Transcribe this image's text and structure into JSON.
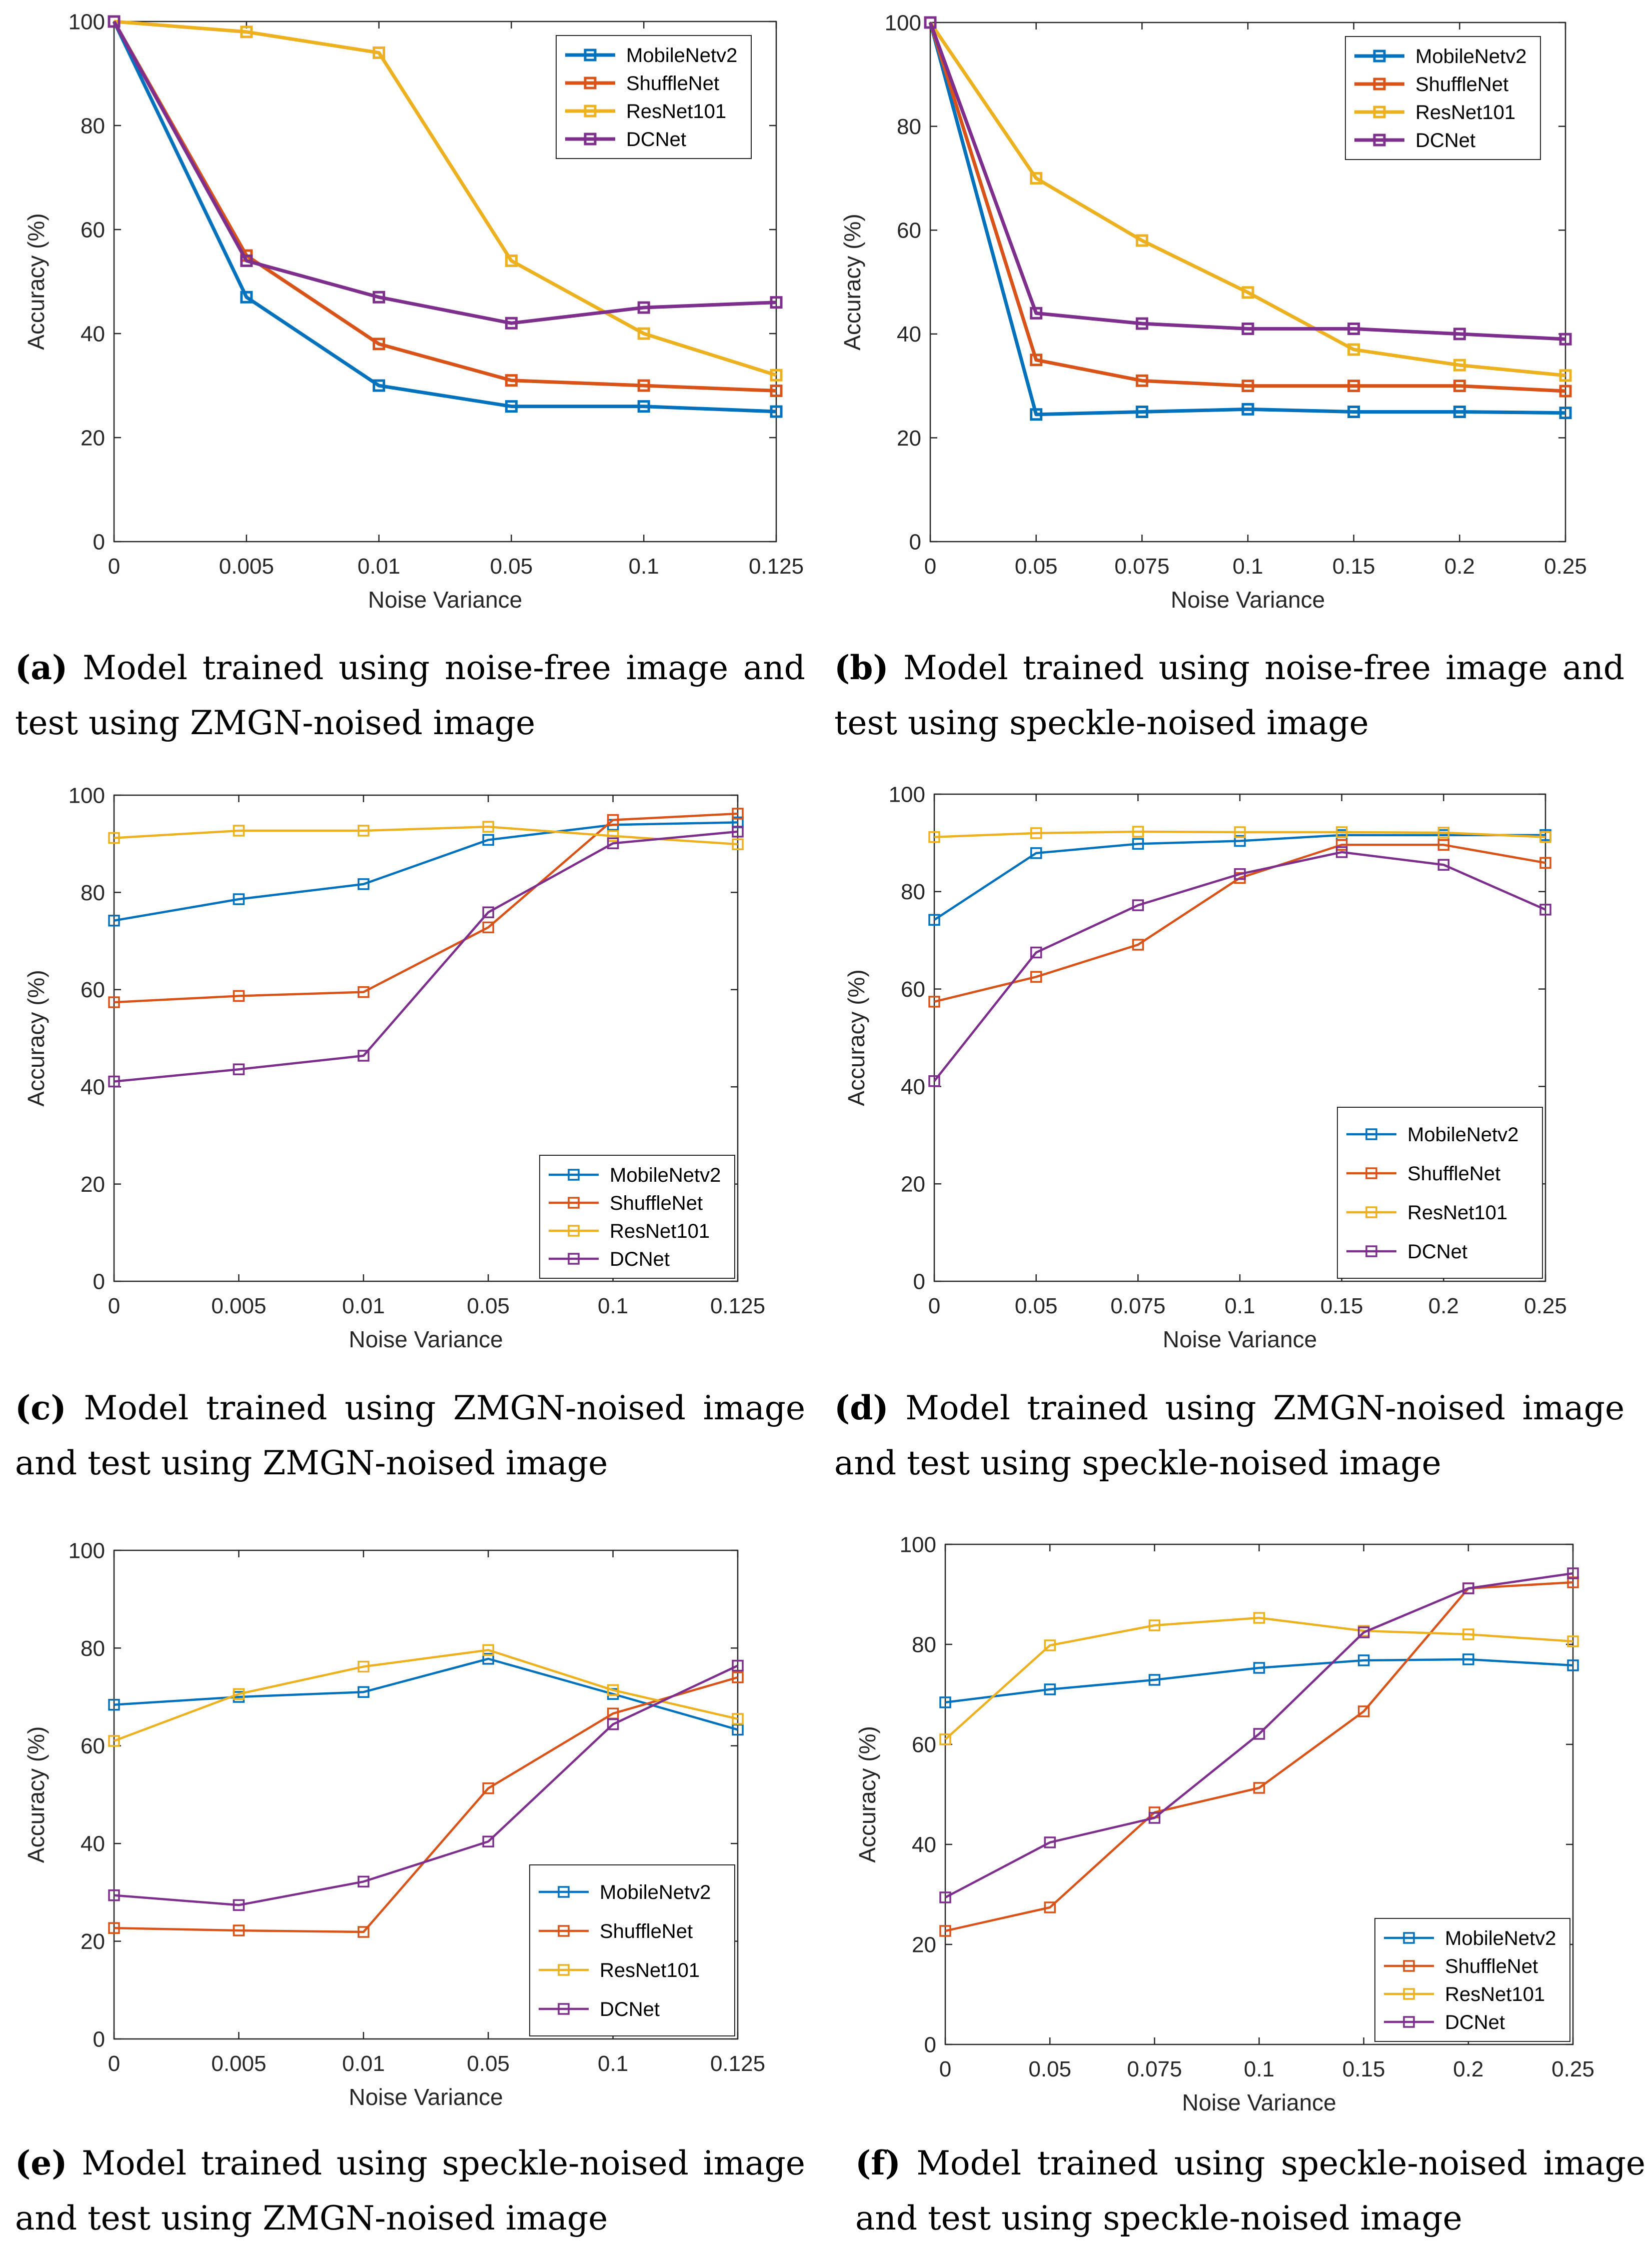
{
  "colors": {
    "MobileNetv2": "#0072BD",
    "ShuffleNet": "#D95319",
    "ResNet101": "#EDB120",
    "DCNet": "#7E2F8E"
  },
  "chart_data": [
    {
      "id": "a",
      "type": "line",
      "caption_label": "(a)",
      "caption_text": "Model trained using noise-free image and test using ZMGN-noised image",
      "categories": [
        "0",
        "0.005",
        "0.01",
        "0.05",
        "0.1",
        "0.125"
      ],
      "xlabel": "Noise Variance",
      "ylabel": "Accuracy (%)",
      "ylim": [
        0,
        100
      ],
      "yticks": [
        "0",
        "20",
        "40",
        "60",
        "80",
        "100"
      ],
      "legend_position": "top-right",
      "line_style": "thick",
      "series": [
        {
          "name": "MobileNetv2",
          "values": [
            100,
            47,
            30,
            26,
            26,
            25
          ]
        },
        {
          "name": "ShuffleNet",
          "values": [
            100,
            55,
            38,
            31,
            30,
            29
          ]
        },
        {
          "name": "ResNet101",
          "values": [
            100,
            98,
            94,
            54,
            40,
            32
          ]
        },
        {
          "name": "DCNet",
          "values": [
            100,
            54,
            47,
            42,
            45,
            46
          ]
        }
      ]
    },
    {
      "id": "b",
      "type": "line",
      "caption_label": "(b)",
      "caption_text": "Model trained using noise-free image and test using speckle-noised image",
      "categories": [
        "0",
        "0.05",
        "0.075",
        "0.1",
        "0.15",
        "0.2",
        "0.25"
      ],
      "xlabel": "Noise Variance",
      "ylabel": "Accuracy (%)",
      "ylim": [
        0,
        100
      ],
      "yticks": [
        "0",
        "20",
        "40",
        "60",
        "80",
        "100"
      ],
      "legend_position": "top-right",
      "line_style": "thick",
      "series": [
        {
          "name": "MobileNetv2",
          "values": [
            100,
            24.5,
            25,
            25.5,
            25,
            25,
            24.8
          ]
        },
        {
          "name": "ShuffleNet",
          "values": [
            100,
            35,
            31,
            30,
            30,
            30,
            29
          ]
        },
        {
          "name": "ResNet101",
          "values": [
            100,
            70,
            58,
            48,
            37,
            34,
            32
          ]
        },
        {
          "name": "DCNet",
          "values": [
            100,
            44,
            42,
            41,
            41,
            40,
            39
          ]
        }
      ]
    },
    {
      "id": "c",
      "type": "line",
      "caption_label": "(c)",
      "caption_text": "Model trained using ZMGN-noised image and test using ZMGN-noised image",
      "categories": [
        "0",
        "0.005",
        "0.01",
        "0.05",
        "0.1",
        "0.125"
      ],
      "xlabel": "Noise Variance",
      "ylabel": "Accuracy (%)",
      "ylim": [
        0,
        100
      ],
      "yticks": [
        "0",
        "20",
        "40",
        "60",
        "80",
        "100"
      ],
      "legend_position": "bottom-right",
      "line_style": "thin",
      "series": [
        {
          "name": "MobileNetv2",
          "values": [
            74.2,
            78.6,
            81.7,
            90.8,
            93.9,
            94.4
          ]
        },
        {
          "name": "ShuffleNet",
          "values": [
            57.4,
            58.7,
            59.5,
            72.8,
            94.9,
            96.2
          ]
        },
        {
          "name": "ResNet101",
          "values": [
            91.2,
            92.7,
            92.7,
            93.5,
            91.6,
            89.9
          ]
        },
        {
          "name": "DCNet",
          "values": [
            41.1,
            43.6,
            46.4,
            75.9,
            90.1,
            92.5
          ]
        }
      ]
    },
    {
      "id": "d",
      "type": "line",
      "caption_label": "(d)",
      "caption_text": "Model trained using ZMGN-noised image and test using speckle-noised image",
      "categories": [
        "0",
        "0.05",
        "0.075",
        "0.1",
        "0.15",
        "0.2",
        "0.25"
      ],
      "xlabel": "Noise Variance",
      "ylabel": "Accuracy (%)",
      "ylim": [
        0,
        100
      ],
      "yticks": [
        "0",
        "20",
        "40",
        "60",
        "80",
        "100"
      ],
      "legend_position": "bottom-right",
      "line_style": "thin",
      "series": [
        {
          "name": "MobileNetv2",
          "values": [
            74.2,
            87.9,
            89.8,
            90.4,
            91.6,
            91.6,
            91.6
          ]
        },
        {
          "name": "ShuffleNet",
          "values": [
            57.4,
            62.5,
            69.1,
            82.8,
            89.6,
            89.6,
            85.9
          ]
        },
        {
          "name": "ResNet101",
          "values": [
            91.2,
            92.0,
            92.3,
            92.2,
            92.2,
            92.1,
            91.2
          ]
        },
        {
          "name": "DCNet",
          "values": [
            41.1,
            67.5,
            77.2,
            83.6,
            88.1,
            85.5,
            76.3
          ]
        }
      ]
    },
    {
      "id": "e",
      "type": "line",
      "caption_label": "(e)",
      "caption_text": "Model trained using speckle-noised image and test using ZMGN-noised image",
      "categories": [
        "0",
        "0.005",
        "0.01",
        "0.05",
        "0.1",
        "0.125"
      ],
      "xlabel": "Noise Variance",
      "ylabel": "Accuracy (%)",
      "ylim": [
        0,
        100
      ],
      "yticks": [
        "0",
        "20",
        "40",
        "60",
        "80",
        "100"
      ],
      "legend_position": "bottom-right",
      "line_style": "thin",
      "series": [
        {
          "name": "MobileNetv2",
          "values": [
            68.4,
            70.0,
            71.0,
            77.8,
            70.6,
            63.3
          ]
        },
        {
          "name": "ShuffleNet",
          "values": [
            22.7,
            22.2,
            21.9,
            51.3,
            66.6,
            74.0
          ]
        },
        {
          "name": "ResNet101",
          "values": [
            61.0,
            70.6,
            76.2,
            79.6,
            71.4,
            65.5
          ]
        },
        {
          "name": "DCNet",
          "values": [
            29.4,
            27.4,
            32.2,
            40.4,
            64.4,
            76.4
          ]
        }
      ]
    },
    {
      "id": "f",
      "type": "line",
      "caption_label": "(f)",
      "caption_text": "Model trained using speckle-noised image and test using speckle-noised image",
      "categories": [
        "0",
        "0.05",
        "0.075",
        "0.1",
        "0.15",
        "0.2",
        "0.25"
      ],
      "xlabel": "Noise Variance",
      "ylabel": "Accuracy (%)",
      "ylim": [
        0,
        100
      ],
      "yticks": [
        "0",
        "20",
        "40",
        "60",
        "80",
        "100"
      ],
      "legend_position": "bottom-right",
      "line_style": "thin",
      "series": [
        {
          "name": "MobileNetv2",
          "values": [
            68.4,
            71.0,
            72.9,
            75.3,
            76.8,
            77.0,
            75.8
          ]
        },
        {
          "name": "ShuffleNet",
          "values": [
            22.7,
            27.4,
            46.4,
            51.3,
            66.6,
            91.2,
            92.4
          ]
        },
        {
          "name": "ResNet101",
          "values": [
            61.0,
            79.8,
            83.8,
            85.3,
            82.7,
            82.0,
            80.6
          ]
        },
        {
          "name": "DCNet",
          "values": [
            29.4,
            40.4,
            45.3,
            62.1,
            82.4,
            91.2,
            94.2
          ]
        }
      ]
    }
  ]
}
